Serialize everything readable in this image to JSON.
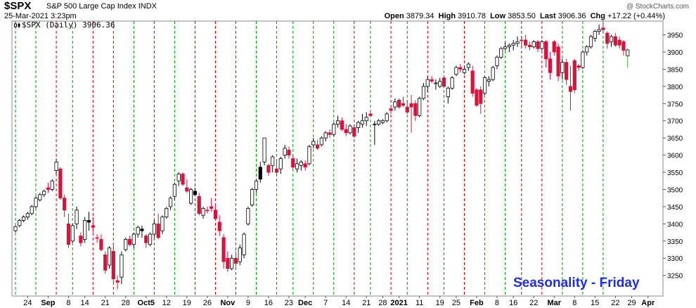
{
  "header": {
    "symbol": "$SPX",
    "name": "S&P 500 Large Cap Index",
    "exchange": "INDX",
    "date": "25-Mar-2021 3:23pm",
    "brand": "@ StockCharts.com",
    "open_label": "Open",
    "open": "3879.34",
    "high_label": "High",
    "high": "3910.78",
    "low_label": "Low",
    "low": "3853.50",
    "last_label": "Last",
    "last": "3906.36",
    "chg_label": "Chg",
    "chg": "+17.22 (+0.44%)"
  },
  "legend_text": "$SPX (Daily) 3906.36",
  "annotation": "Seasonality - Friday",
  "colors": {
    "up": "#ffffff",
    "down": "#d4143c",
    "black": "#000000",
    "today": "#3cb43c",
    "green_line": "#009900",
    "red_line": "#cc0000"
  },
  "chart_data": {
    "type": "candlestick",
    "ylim": [
      3190,
      3990
    ],
    "y_ticks": [
      3250,
      3300,
      3350,
      3400,
      3450,
      3500,
      3550,
      3600,
      3650,
      3700,
      3750,
      3800,
      3850,
      3900,
      3950
    ],
    "x_labels": [
      {
        "i": 3,
        "t": "24"
      },
      {
        "i": 8,
        "t": "Sep"
      },
      {
        "i": 13,
        "t": "8"
      },
      {
        "i": 17,
        "t": "14"
      },
      {
        "i": 22,
        "t": "21"
      },
      {
        "i": 27,
        "t": "28"
      },
      {
        "i": 32,
        "t": "Oct5"
      },
      {
        "i": 37,
        "t": "12"
      },
      {
        "i": 42,
        "t": "19"
      },
      {
        "i": 47,
        "t": "26"
      },
      {
        "i": 52,
        "t": "Nov"
      },
      {
        "i": 57,
        "t": "9"
      },
      {
        "i": 62,
        "t": "16"
      },
      {
        "i": 67,
        "t": "23"
      },
      {
        "i": 71,
        "t": "Dec"
      },
      {
        "i": 76,
        "t": "7"
      },
      {
        "i": 81,
        "t": "14"
      },
      {
        "i": 86,
        "t": "21"
      },
      {
        "i": 90,
        "t": "28"
      },
      {
        "i": 94,
        "t": "2021"
      },
      {
        "i": 99,
        "t": "11"
      },
      {
        "i": 104,
        "t": "19"
      },
      {
        "i": 108,
        "t": "25"
      },
      {
        "i": 113,
        "t": "Feb"
      },
      {
        "i": 118,
        "t": "8"
      },
      {
        "i": 122,
        "t": "16"
      },
      {
        "i": 127,
        "t": "22"
      },
      {
        "i": 132,
        "t": "Mar"
      },
      {
        "i": 137,
        "t": "8"
      },
      {
        "i": 142,
        "t": "15"
      },
      {
        "i": 147,
        "t": "22"
      },
      {
        "i": 151,
        "t": "29"
      },
      {
        "i": 155,
        "t": "Apr"
      }
    ],
    "friday_lines": [
      {
        "i": 0,
        "c": "g"
      },
      {
        "i": 5,
        "c": "g"
      },
      {
        "i": 10,
        "c": "r"
      },
      {
        "i": 14,
        "c": "g"
      },
      {
        "i": 19,
        "c": "r"
      },
      {
        "i": 24,
        "c": "r"
      },
      {
        "i": 29,
        "c": "g"
      },
      {
        "i": 34,
        "c": "r"
      },
      {
        "i": 39,
        "c": "g"
      },
      {
        "i": 44,
        "c": "r"
      },
      {
        "i": 49,
        "c": "r"
      },
      {
        "i": 54,
        "c": "r"
      },
      {
        "i": 59,
        "c": "g"
      },
      {
        "i": 64,
        "c": "g"
      },
      {
        "i": 68,
        "c": "g"
      },
      {
        "i": 73,
        "c": "g"
      },
      {
        "i": 78,
        "c": "g"
      },
      {
        "i": 83,
        "c": "r"
      },
      {
        "i": 87,
        "c": "g"
      },
      {
        "i": 92,
        "c": "r"
      },
      {
        "i": 96,
        "c": "g"
      },
      {
        "i": 101,
        "c": "r"
      },
      {
        "i": 105,
        "c": "g"
      },
      {
        "i": 110,
        "c": "r"
      },
      {
        "i": 115,
        "c": "g"
      },
      {
        "i": 120,
        "c": "g"
      },
      {
        "i": 124,
        "c": "r"
      },
      {
        "i": 129,
        "c": "r"
      },
      {
        "i": 134,
        "c": "g"
      },
      {
        "i": 139,
        "c": "g"
      },
      {
        "i": 144,
        "c": "g"
      }
    ],
    "candles": [
      [
        3380,
        3395,
        3375,
        3392,
        "u"
      ],
      [
        3395,
        3415,
        3390,
        3410,
        "u"
      ],
      [
        3410,
        3425,
        3405,
        3420,
        "u"
      ],
      [
        3420,
        3435,
        3412,
        3430,
        "u"
      ],
      [
        3430,
        3455,
        3425,
        3450,
        "u"
      ],
      [
        3450,
        3480,
        3445,
        3475,
        "u"
      ],
      [
        3470,
        3490,
        3465,
        3485,
        "u"
      ],
      [
        3485,
        3500,
        3478,
        3495,
        "u"
      ],
      [
        3505,
        3520,
        3490,
        3500,
        "d"
      ],
      [
        3500,
        3530,
        3495,
        3525,
        "u"
      ],
      [
        3555,
        3590,
        3545,
        3580,
        "u"
      ],
      [
        3560,
        3565,
        3470,
        3475,
        "d"
      ],
      [
        3475,
        3485,
        3420,
        3440,
        "d"
      ],
      [
        3400,
        3430,
        3330,
        3340,
        "d"
      ],
      [
        3350,
        3400,
        3345,
        3395,
        "u"
      ],
      [
        3400,
        3450,
        3385,
        3440,
        "u"
      ],
      [
        3365,
        3375,
        3335,
        3345,
        "d"
      ],
      [
        3355,
        3420,
        3345,
        3410,
        "u"
      ],
      [
        3410,
        3435,
        3380,
        3405,
        "b"
      ],
      [
        3395,
        3420,
        3375,
        3390,
        "d"
      ],
      [
        3360,
        3370,
        3345,
        3360,
        "d"
      ],
      [
        3355,
        3370,
        3320,
        3325,
        "d"
      ],
      [
        3310,
        3320,
        3255,
        3265,
        "d"
      ],
      [
        3280,
        3335,
        3270,
        3330,
        "u"
      ],
      [
        3320,
        3340,
        3230,
        3240,
        "d"
      ],
      [
        3230,
        3250,
        3210,
        3235,
        "d"
      ],
      [
        3245,
        3320,
        3225,
        3310,
        "u"
      ],
      [
        3325,
        3360,
        3320,
        3355,
        "u"
      ],
      [
        3355,
        3365,
        3335,
        3340,
        "d"
      ],
      [
        3340,
        3375,
        3330,
        3370,
        "u"
      ],
      [
        3370,
        3395,
        3360,
        3390,
        "u"
      ],
      [
        3385,
        3395,
        3360,
        3380,
        "b"
      ],
      [
        3365,
        3370,
        3330,
        3345,
        "d"
      ],
      [
        3340,
        3375,
        3335,
        3370,
        "u"
      ],
      [
        3370,
        3410,
        3360,
        3400,
        "u"
      ],
      [
        3400,
        3430,
        3355,
        3360,
        "d"
      ],
      [
        3380,
        3425,
        3370,
        3420,
        "u"
      ],
      [
        3420,
        3450,
        3415,
        3445,
        "u"
      ],
      [
        3450,
        3480,
        3440,
        3475,
        "u"
      ],
      [
        3480,
        3520,
        3470,
        3515,
        "u"
      ],
      [
        3525,
        3550,
        3510,
        3545,
        "u"
      ],
      [
        3545,
        3550,
        3510,
        3515,
        "d"
      ],
      [
        3505,
        3530,
        3490,
        3495,
        "d"
      ],
      [
        3460,
        3505,
        3455,
        3500,
        "u"
      ],
      [
        3495,
        3505,
        3480,
        3485,
        "b"
      ],
      [
        3480,
        3490,
        3425,
        3430,
        "d"
      ],
      [
        3425,
        3450,
        3415,
        3445,
        "u"
      ],
      [
        3440,
        3450,
        3430,
        3440,
        "d"
      ],
      [
        3450,
        3475,
        3435,
        3445,
        "d"
      ],
      [
        3440,
        3460,
        3410,
        3415,
        "d"
      ],
      [
        3405,
        3425,
        3365,
        3380,
        "d"
      ],
      [
        3360,
        3370,
        3270,
        3290,
        "d"
      ],
      [
        3300,
        3320,
        3260,
        3270,
        "d"
      ],
      [
        3270,
        3310,
        3265,
        3300,
        "u"
      ],
      [
        3300,
        3320,
        3275,
        3285,
        "d"
      ],
      [
        3290,
        3340,
        3280,
        3330,
        "u"
      ],
      [
        3310,
        3375,
        3300,
        3370,
        "u"
      ],
      [
        3400,
        3450,
        3395,
        3445,
        "u"
      ],
      [
        3455,
        3505,
        3450,
        3500,
        "u"
      ],
      [
        3500,
        3530,
        3490,
        3525,
        "u"
      ],
      [
        3530,
        3580,
        3520,
        3565,
        "b"
      ],
      [
        3650,
        3650,
        3570,
        3580,
        "u"
      ],
      [
        3570,
        3575,
        3540,
        3550,
        "d"
      ],
      [
        3570,
        3600,
        3550,
        3595,
        "u"
      ],
      [
        3550,
        3580,
        3540,
        3560,
        "d"
      ],
      [
        3560,
        3595,
        3545,
        3590,
        "u"
      ],
      [
        3600,
        3630,
        3590,
        3620,
        "u"
      ],
      [
        3615,
        3625,
        3590,
        3600,
        "d"
      ],
      [
        3590,
        3600,
        3560,
        3565,
        "d"
      ],
      [
        3560,
        3590,
        3550,
        3575,
        "u"
      ],
      [
        3570,
        3585,
        3555,
        3580,
        "u"
      ],
      [
        3575,
        3585,
        3555,
        3565,
        "d"
      ],
      [
        3575,
        3630,
        3570,
        3625,
        "u"
      ],
      [
        3630,
        3650,
        3620,
        3640,
        "u"
      ],
      [
        3630,
        3645,
        3615,
        3620,
        "d"
      ],
      [
        3630,
        3655,
        3625,
        3650,
        "u"
      ],
      [
        3650,
        3670,
        3640,
        3665,
        "u"
      ],
      [
        3665,
        3675,
        3650,
        3660,
        "d"
      ],
      [
        3660,
        3695,
        3655,
        3690,
        "u"
      ],
      [
        3690,
        3715,
        3680,
        3700,
        "u"
      ],
      [
        3700,
        3710,
        3670,
        3675,
        "d"
      ],
      [
        3675,
        3690,
        3655,
        3665,
        "d"
      ],
      [
        3665,
        3690,
        3660,
        3685,
        "u"
      ],
      [
        3680,
        3690,
        3650,
        3655,
        "d"
      ],
      [
        3680,
        3700,
        3665,
        3695,
        "u"
      ],
      [
        3690,
        3720,
        3680,
        3700,
        "u"
      ],
      [
        3700,
        3725,
        3685,
        3710,
        "u"
      ],
      [
        3720,
        3730,
        3710,
        3715,
        "d"
      ],
      [
        3690,
        3700,
        3630,
        3690,
        "u"
      ],
      [
        3690,
        3705,
        3685,
        3700,
        "u"
      ],
      [
        3695,
        3705,
        3690,
        3700,
        "u"
      ],
      [
        3700,
        3725,
        3695,
        3720,
        "u"
      ],
      [
        3735,
        3745,
        3720,
        3730,
        "d"
      ],
      [
        3740,
        3765,
        3730,
        3755,
        "u"
      ],
      [
        3760,
        3765,
        3735,
        3740,
        "d"
      ],
      [
        3750,
        3770,
        3740,
        3745,
        "d"
      ],
      [
        3740,
        3760,
        3720,
        3725,
        "d"
      ],
      [
        3740,
        3775,
        3665,
        3750,
        "d"
      ],
      [
        3750,
        3760,
        3700,
        3715,
        "d"
      ],
      [
        3715,
        3770,
        3710,
        3765,
        "u"
      ],
      [
        3765,
        3810,
        3760,
        3800,
        "u"
      ],
      [
        3800,
        3830,
        3785,
        3820,
        "u"
      ],
      [
        3820,
        3830,
        3810,
        3815,
        "d"
      ],
      [
        3810,
        3820,
        3790,
        3810,
        "u"
      ],
      [
        3800,
        3825,
        3795,
        3815,
        "u"
      ],
      [
        3825,
        3830,
        3795,
        3800,
        "d"
      ],
      [
        3770,
        3800,
        3750,
        3795,
        "u"
      ],
      [
        3795,
        3830,
        3790,
        3825,
        "u"
      ],
      [
        3835,
        3860,
        3830,
        3855,
        "u"
      ],
      [
        3855,
        3865,
        3840,
        3850,
        "d"
      ],
      [
        3840,
        3860,
        3835,
        3850,
        "u"
      ],
      [
        3855,
        3870,
        3845,
        3865,
        "u"
      ],
      [
        3845,
        3860,
        3770,
        3780,
        "d"
      ],
      [
        3790,
        3795,
        3740,
        3745,
        "d"
      ],
      [
        3750,
        3800,
        3720,
        3790,
        "d"
      ],
      [
        3780,
        3830,
        3775,
        3825,
        "u"
      ],
      [
        3815,
        3830,
        3800,
        3820,
        "u"
      ],
      [
        3820,
        3860,
        3815,
        3855,
        "u"
      ],
      [
        3860,
        3890,
        3850,
        3885,
        "u"
      ],
      [
        3885,
        3915,
        3880,
        3910,
        "u"
      ],
      [
        3910,
        3930,
        3905,
        3915,
        "u"
      ],
      [
        3915,
        3925,
        3900,
        3920,
        "u"
      ],
      [
        3920,
        3935,
        3905,
        3925,
        "u"
      ],
      [
        3925,
        3945,
        3915,
        3930,
        "u"
      ],
      [
        3935,
        3945,
        3915,
        3935,
        "d"
      ],
      [
        3935,
        3950,
        3910,
        3920,
        "d"
      ],
      [
        3920,
        3930,
        3905,
        3915,
        "d"
      ],
      [
        3915,
        3935,
        3910,
        3930,
        "u"
      ],
      [
        3930,
        3935,
        3900,
        3910,
        "d"
      ],
      [
        3910,
        3935,
        3905,
        3930,
        "u"
      ],
      [
        3930,
        3935,
        3855,
        3880,
        "d"
      ],
      [
        3880,
        3900,
        3820,
        3840,
        "d"
      ],
      [
        3900,
        3935,
        3890,
        3930,
        "d"
      ],
      [
        3915,
        3925,
        3815,
        3830,
        "d"
      ],
      [
        3840,
        3880,
        3820,
        3870,
        "u"
      ],
      [
        3870,
        3880,
        3805,
        3820,
        "d"
      ],
      [
        3800,
        3860,
        3730,
        3785,
        "d"
      ],
      [
        3790,
        3880,
        3780,
        3875,
        "d"
      ],
      [
        3860,
        3865,
        3845,
        3855,
        "d"
      ],
      [
        3855,
        3905,
        3850,
        3900,
        "u"
      ],
      [
        3900,
        3920,
        3890,
        3915,
        "u"
      ],
      [
        3915,
        3950,
        3910,
        3945,
        "u"
      ],
      [
        3940,
        3965,
        3930,
        3960,
        "u"
      ],
      [
        3960,
        3980,
        3950,
        3965,
        "u"
      ],
      [
        3965,
        3985,
        3955,
        3970,
        "d"
      ],
      [
        3955,
        3960,
        3910,
        3925,
        "d"
      ],
      [
        3930,
        3950,
        3915,
        3945,
        "u"
      ],
      [
        3945,
        3955,
        3915,
        3920,
        "d"
      ],
      [
        3920,
        3945,
        3910,
        3935,
        "d"
      ],
      [
        3930,
        3935,
        3890,
        3905,
        "d"
      ],
      [
        3889,
        3911,
        3854,
        3906,
        "g"
      ]
    ]
  }
}
